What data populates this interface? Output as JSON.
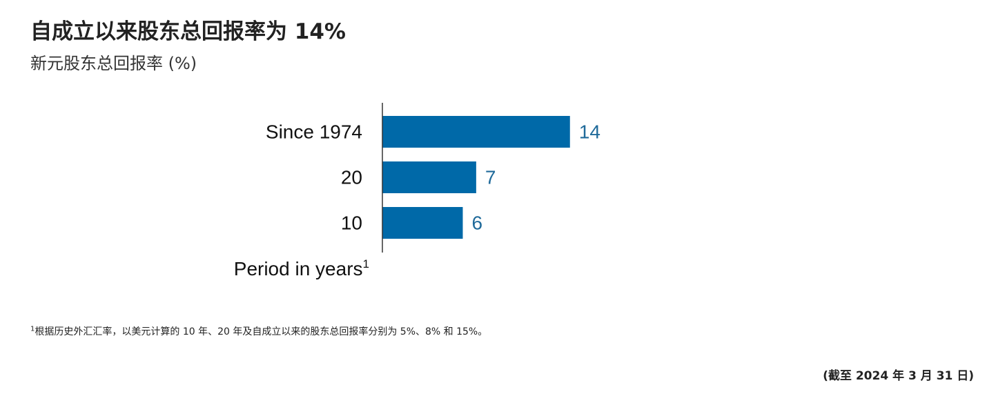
{
  "header": {
    "title": "自成立以来股东总回报率为 14%",
    "subtitle": "新元股东总回报率 (%)"
  },
  "chart_data": {
    "type": "bar",
    "orientation": "horizontal",
    "categories": [
      "Since 1974",
      "20",
      "10"
    ],
    "values": [
      14,
      7,
      6
    ],
    "xlim": [
      0,
      17
    ],
    "xlabel": "Period in years",
    "xlabel_superscript": "1",
    "bar_color": "#0069A8",
    "label_color": "#1F6A9A"
  },
  "footer": {
    "footnote_marker": "1",
    "footnote": "根据历史外汇汇率，以美元计算的 10 年、20 年及自成立以来的股东总回报率分别为 5%、8% 和 15%。",
    "as_of": "(截至 2024 年 3 月 31 日)"
  }
}
